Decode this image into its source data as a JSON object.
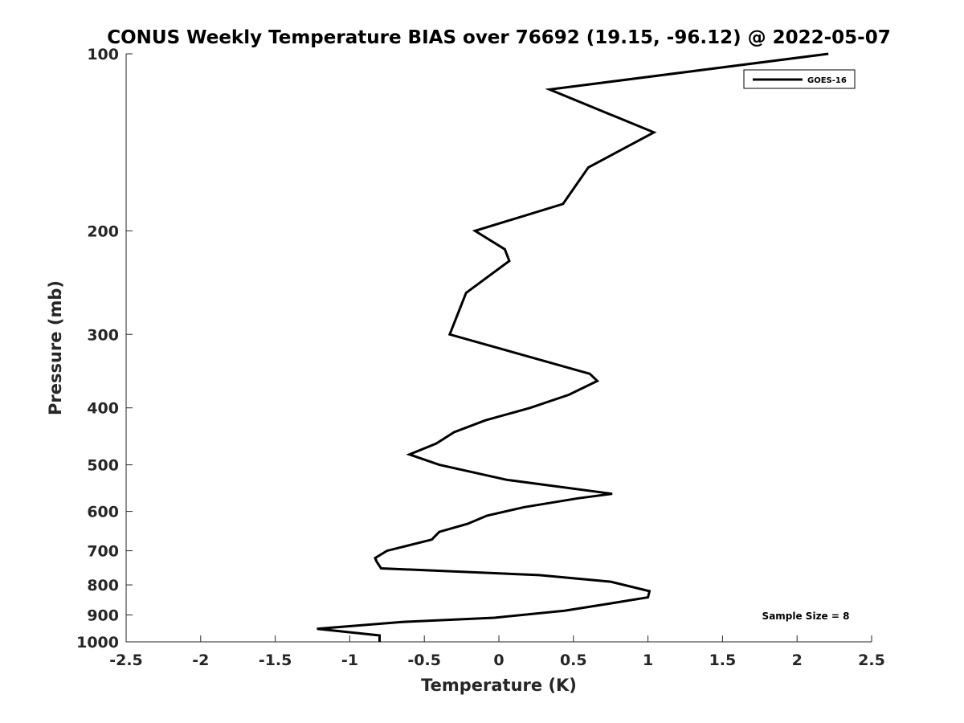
{
  "chart_data": {
    "type": "line",
    "title": "CONUS Weekly Temperature BIAS over 76692 (19.15, -96.12) @ 2022-05-07",
    "xlabel": "Temperature (K)",
    "ylabel": "Pressure (mb)",
    "xlim": [
      -2.5,
      2.5
    ],
    "ylim": [
      1000,
      100
    ],
    "yscale": "log",
    "y_reversed": true,
    "x_ticks": [
      "-2.5",
      "-2",
      "-1.5",
      "-1",
      "-0.5",
      "0",
      "0.5",
      "1",
      "1.5",
      "2",
      "2.5"
    ],
    "x_tick_values": [
      -2.5,
      -2,
      -1.5,
      -1,
      -0.5,
      0,
      0.5,
      1,
      1.5,
      2,
      2.5
    ],
    "y_ticks": [
      "100",
      "200",
      "300",
      "400",
      "500",
      "600",
      "700",
      "800",
      "900",
      "1000"
    ],
    "y_tick_values": [
      100,
      200,
      300,
      400,
      500,
      600,
      700,
      800,
      900,
      1000
    ],
    "grid": false,
    "legend_position": "top-right",
    "annotation": "Sample Size = 8",
    "series": [
      {
        "name": "GOES-16",
        "color": "#000000",
        "x": [
          2.21,
          0.34,
          1.04,
          0.6,
          0.43,
          -0.16,
          0.04,
          0.07,
          -0.22,
          -0.33,
          0.61,
          0.66,
          0.47,
          0.21,
          -0.09,
          -0.3,
          -0.42,
          -0.6,
          -0.4,
          0.05,
          0.76,
          0.53,
          0.17,
          -0.08,
          -0.21,
          -0.4,
          -0.45,
          -0.75,
          -0.83,
          -0.82,
          -0.79,
          0.27,
          0.75,
          1.01,
          1.0,
          0.75,
          0.44,
          -0.03,
          -0.65,
          -1.22,
          -0.8,
          -0.8
        ],
        "y": [
          100,
          115,
          136,
          156,
          180,
          200,
          215,
          225,
          255,
          300,
          350,
          360,
          380,
          400,
          420,
          440,
          460,
          480,
          500,
          530,
          560,
          570,
          590,
          610,
          630,
          650,
          670,
          700,
          720,
          730,
          750,
          770,
          790,
          820,
          840,
          860,
          885,
          910,
          925,
          950,
          975,
          1000
        ]
      }
    ]
  }
}
